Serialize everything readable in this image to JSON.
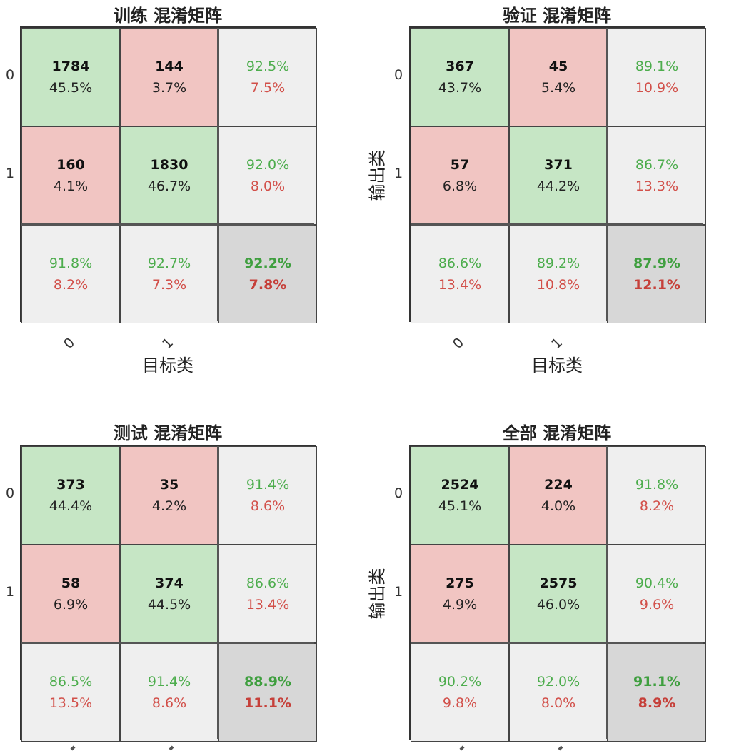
{
  "chart_data": [
    {
      "type": "heatmap",
      "title": "训练 混淆矩阵",
      "xlabel": "目标类",
      "ylabel": "",
      "x_ticks": [
        "0",
        "1"
      ],
      "y_ticks": [
        "0",
        "1"
      ],
      "cells": [
        [
          {
            "count": "1784",
            "pct": "45.5%"
          },
          {
            "count": "144",
            "pct": "3.7%"
          },
          {
            "good": "92.5%",
            "bad": "7.5%"
          }
        ],
        [
          {
            "count": "160",
            "pct": "4.1%"
          },
          {
            "count": "1830",
            "pct": "46.7%"
          },
          {
            "good": "92.0%",
            "bad": "8.0%"
          }
        ],
        [
          {
            "good": "91.8%",
            "bad": "8.2%"
          },
          {
            "good": "92.7%",
            "bad": "7.3%"
          },
          {
            "good": "92.2%",
            "bad": "7.8%"
          }
        ]
      ]
    },
    {
      "type": "heatmap",
      "title": "验证 混淆矩阵",
      "xlabel": "目标类",
      "ylabel": "输出类",
      "x_ticks": [
        "0",
        "1"
      ],
      "y_ticks": [
        "0",
        "1"
      ],
      "cells": [
        [
          {
            "count": "367",
            "pct": "43.7%"
          },
          {
            "count": "45",
            "pct": "5.4%"
          },
          {
            "good": "89.1%",
            "bad": "10.9%"
          }
        ],
        [
          {
            "count": "57",
            "pct": "6.8%"
          },
          {
            "count": "371",
            "pct": "44.2%"
          },
          {
            "good": "86.7%",
            "bad": "13.3%"
          }
        ],
        [
          {
            "good": "86.6%",
            "bad": "13.4%"
          },
          {
            "good": "89.2%",
            "bad": "10.8%"
          },
          {
            "good": "87.9%",
            "bad": "12.1%"
          }
        ]
      ]
    },
    {
      "type": "heatmap",
      "title": "测试 混淆矩阵",
      "xlabel": "",
      "ylabel": "",
      "x_ticks": [],
      "y_ticks": [
        "0",
        "1"
      ],
      "cells": [
        [
          {
            "count": "373",
            "pct": "44.4%"
          },
          {
            "count": "35",
            "pct": "4.2%"
          },
          {
            "good": "91.4%",
            "bad": "8.6%"
          }
        ],
        [
          {
            "count": "58",
            "pct": "6.9%"
          },
          {
            "count": "374",
            "pct": "44.5%"
          },
          {
            "good": "86.6%",
            "bad": "13.4%"
          }
        ],
        [
          {
            "good": "86.5%",
            "bad": "13.5%"
          },
          {
            "good": "91.4%",
            "bad": "8.6%"
          },
          {
            "good": "88.9%",
            "bad": "11.1%"
          }
        ]
      ]
    },
    {
      "type": "heatmap",
      "title": "全部 混淆矩阵",
      "xlabel": "",
      "ylabel": "输出类",
      "x_ticks": [],
      "y_ticks": [
        "0",
        "1"
      ],
      "cells": [
        [
          {
            "count": "2524",
            "pct": "45.1%"
          },
          {
            "count": "224",
            "pct": "4.0%"
          },
          {
            "good": "91.8%",
            "bad": "8.2%"
          }
        ],
        [
          {
            "count": "275",
            "pct": "4.9%"
          },
          {
            "count": "2575",
            "pct": "46.0%"
          },
          {
            "good": "90.4%",
            "bad": "9.6%"
          }
        ],
        [
          {
            "good": "90.2%",
            "bad": "9.8%"
          },
          {
            "good": "92.0%",
            "bad": "8.0%"
          },
          {
            "good": "91.1%",
            "bad": "8.9%"
          }
        ]
      ]
    }
  ],
  "colors": {
    "correct_bg": "#c6e6c5",
    "wrong_bg": "#f1c5c2",
    "summary_bg": "#efefef",
    "overall_bg": "#d7d7d7",
    "good_text": "#4dad4d",
    "bad_text": "#d2504a"
  }
}
